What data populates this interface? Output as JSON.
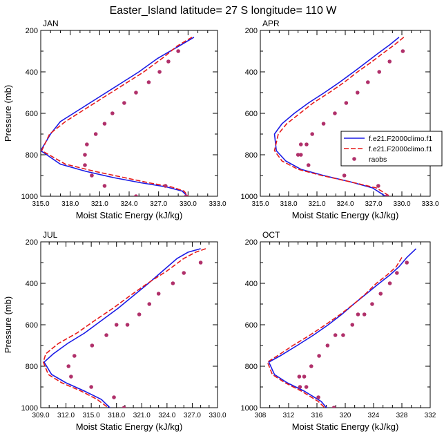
{
  "title": "Easter_Island  latitude= 27 S longitude= 110 W",
  "legend": {
    "placement": "right-middle (upper-right panel)",
    "entries": [
      {
        "label": "f.e21.F2000climo.f1",
        "style": "solid",
        "color": "#1a1ae6"
      },
      {
        "label": "f.e21.F2000climo.f1",
        "style": "dashed",
        "color": "#e61a1a"
      },
      {
        "label": "raobs",
        "style": "marker",
        "color": "#b0306a"
      }
    ]
  },
  "chart_data": [
    {
      "type": "line",
      "panel": "JAN",
      "xlabel": "Moist Static Energy (kJ/kg)",
      "ylabel": "Pressure (mb)",
      "xlim": [
        315.0,
        333.0
      ],
      "ylim": [
        1000,
        200
      ],
      "y_reversed": true,
      "xticks": [
        "315.0",
        "318.0",
        "321.0",
        "324.0",
        "327.0",
        "330.0",
        "333.0"
      ],
      "xtick_values": [
        315,
        318,
        321,
        324,
        327,
        330,
        333
      ],
      "yticks": [
        "200",
        "400",
        "600",
        "800",
        "1000"
      ],
      "ytick_values": [
        200,
        400,
        600,
        800,
        1000
      ],
      "series": [
        {
          "style": "solid",
          "color": "#1a1ae6",
          "x": [
            330.6,
            329.1,
            326.9,
            325.0,
            323.0,
            321.0,
            319.0,
            317.0,
            316.0,
            315.0,
            317.0,
            319.6,
            322.4,
            325.2,
            327.8,
            329.4,
            330.2
          ],
          "y": [
            233,
            275,
            335,
            400,
            460,
            520,
            580,
            640,
            700,
            780,
            845,
            880,
            910,
            935,
            955,
            975,
            1012
          ]
        },
        {
          "style": "dashed",
          "color": "#e61a1a",
          "x": [
            330.4,
            328.9,
            327.5,
            325.5,
            323.5,
            321.5,
            319.5,
            317.5,
            315.9,
            315.1,
            317.5,
            320.5,
            323.5,
            326.0,
            328.3,
            329.6,
            330.2
          ],
          "y": [
            233,
            275,
            330,
            400,
            460,
            520,
            580,
            640,
            700,
            780,
            845,
            880,
            910,
            935,
            955,
            975,
            1012
          ]
        },
        {
          "style": "marker",
          "color": "#b0306a",
          "x": [
            329.0,
            328.0,
            327.1,
            326.0,
            324.7,
            323.5,
            322.3,
            321.5,
            320.6,
            319.7,
            319.5,
            319.5,
            320.2,
            321.5,
            324.7,
            327.7,
            329.8
          ],
          "y": [
            300,
            350,
            400,
            450,
            500,
            550,
            600,
            650,
            700,
            750,
            800,
            850,
            900,
            950,
            1000,
            950,
            1000
          ]
        }
      ]
    },
    {
      "type": "line",
      "panel": "APR",
      "xlabel": "Moist Static Energy (kJ/kg)",
      "ylabel": "",
      "xlim": [
        315.0,
        333.0
      ],
      "ylim": [
        1000,
        200
      ],
      "y_reversed": true,
      "xticks": [
        "315.0",
        "318.0",
        "321.0",
        "324.0",
        "327.0",
        "330.0",
        "333.0"
      ],
      "xtick_values": [
        315,
        318,
        321,
        324,
        327,
        330,
        333
      ],
      "yticks": [
        "200",
        "400",
        "600",
        "800",
        "1000"
      ],
      "ytick_values": [
        200,
        400,
        600,
        800,
        1000
      ],
      "series": [
        {
          "style": "solid",
          "color": "#1a1ae6",
          "x": [
            329.7,
            328.7,
            327.5,
            326.2,
            324.9,
            323.4,
            321.8,
            320.1,
            318.6,
            317.3,
            316.5,
            316.7,
            317.7,
            319.3,
            321.7,
            324.5,
            326.9,
            328.6
          ],
          "y": [
            233,
            270,
            310,
            355,
            400,
            450,
            500,
            550,
            600,
            650,
            700,
            780,
            830,
            870,
            900,
            930,
            960,
            1010
          ]
        },
        {
          "style": "dashed",
          "color": "#e61a1a",
          "x": [
            330.2,
            329.2,
            328.0,
            326.7,
            325.3,
            323.9,
            322.3,
            320.6,
            319.2,
            317.8,
            316.9,
            316.5,
            317.3,
            319.0,
            321.5,
            324.5,
            327.3,
            329.1
          ],
          "y": [
            233,
            270,
            310,
            355,
            400,
            450,
            500,
            550,
            600,
            650,
            700,
            780,
            830,
            870,
            900,
            930,
            960,
            1010
          ]
        },
        {
          "style": "marker",
          "color": "#b0306a",
          "x": [
            330.1,
            328.7,
            327.6,
            326.4,
            325.3,
            324.1,
            322.9,
            321.7,
            320.5,
            319.9,
            319.3,
            319.0,
            319.3,
            320.1,
            323.9,
            327.5,
            328.4
          ],
          "y": [
            300,
            350,
            400,
            450,
            500,
            550,
            600,
            650,
            700,
            750,
            750,
            800,
            800,
            850,
            900,
            950,
            1000
          ]
        }
      ]
    },
    {
      "type": "line",
      "panel": "JUL",
      "xlabel": "Moist Static Energy (kJ/kg)",
      "ylabel": "Pressure (mb)",
      "xlim": [
        309.0,
        330.0
      ],
      "ylim": [
        1000,
        200
      ],
      "y_reversed": true,
      "xticks": [
        "309.0",
        "312.0",
        "315.0",
        "318.0",
        "321.0",
        "324.0",
        "327.0",
        "330.0"
      ],
      "xtick_values": [
        309,
        312,
        315,
        318,
        321,
        324,
        327,
        330
      ],
      "yticks": [
        "200",
        "400",
        "600",
        "800",
        "1000"
      ],
      "ytick_values": [
        200,
        400,
        600,
        800,
        1000
      ],
      "series": [
        {
          "style": "solid",
          "color": "#1a1ae6",
          "x": [
            328.0,
            326.5,
            325.2,
            323.5,
            321.8,
            320.0,
            318.2,
            316.2,
            314.2,
            312.2,
            310.5,
            309.4,
            310.3,
            312.0,
            314.2,
            316.2,
            317.2,
            317.6
          ],
          "y": [
            233,
            250,
            280,
            340,
            400,
            460,
            520,
            580,
            640,
            690,
            740,
            780,
            840,
            880,
            920,
            960,
            1000,
            1012
          ]
        },
        {
          "style": "dashed",
          "color": "#e61a1a",
          "x": [
            328.6,
            327.4,
            326.0,
            324.0,
            321.7,
            319.6,
            317.6,
            315.4,
            313.3,
            311.1,
            309.6,
            309.3,
            309.9,
            311.5,
            313.8,
            315.7,
            317.0,
            317.3
          ],
          "y": [
            233,
            250,
            280,
            340,
            400,
            460,
            520,
            580,
            640,
            690,
            740,
            780,
            840,
            880,
            920,
            960,
            1000,
            1012
          ]
        },
        {
          "style": "marker",
          "color": "#b0306a",
          "x": [
            328.0,
            326.0,
            324.7,
            323.0,
            321.9,
            320.7,
            319.3,
            318.0,
            316.8,
            315.1,
            313.0,
            312.3,
            312.6,
            315.0,
            317.7,
            318.9
          ],
          "y": [
            300,
            350,
            400,
            450,
            500,
            550,
            600,
            600,
            650,
            700,
            750,
            800,
            850,
            900,
            950,
            1000
          ]
        }
      ]
    },
    {
      "type": "line",
      "panel": "OCT",
      "xlabel": "Moist Static Energy (kJ/kg)",
      "ylabel": "",
      "xlim": [
        308,
        332
      ],
      "ylim": [
        1000,
        200
      ],
      "y_reversed": true,
      "xticks": [
        "308",
        "312",
        "316",
        "320",
        "324",
        "328",
        "332"
      ],
      "xtick_values": [
        308,
        312,
        316,
        320,
        324,
        328,
        332
      ],
      "yticks": [
        "200",
        "400",
        "600",
        "800",
        "1000"
      ],
      "ytick_values": [
        200,
        400,
        600,
        800,
        1000
      ],
      "series": [
        {
          "style": "solid",
          "color": "#1a1ae6",
          "x": [
            330.0,
            328.7,
            327.6,
            326.3,
            324.8,
            323.0,
            321.2,
            319.5,
            317.6,
            315.5,
            313.2,
            310.8,
            309.2,
            310.0,
            311.8,
            314.2,
            316.6,
            317.6
          ],
          "y": [
            233,
            275,
            320,
            360,
            400,
            450,
            500,
            550,
            600,
            650,
            700,
            750,
            780,
            840,
            880,
            920,
            970,
            1010
          ]
        },
        {
          "style": "dashed",
          "color": "#e61a1a",
          "x": [
            328.0,
            327.2,
            325.9,
            324.4,
            322.9,
            321.2,
            319.3,
            317.2,
            315.0,
            312.6,
            310.4,
            309.0,
            309.7,
            311.5,
            313.8,
            316.2,
            317.4
          ],
          "y": [
            275,
            320,
            360,
            400,
            450,
            500,
            550,
            600,
            650,
            700,
            750,
            780,
            840,
            880,
            920,
            970,
            1010
          ]
        },
        {
          "style": "marker",
          "color": "#b0306a",
          "x": [
            328.7,
            327.3,
            326.3,
            325.0,
            323.8,
            322.7,
            321.8,
            321.0,
            319.7,
            318.6,
            317.5,
            316.3,
            315.2,
            314.2,
            313.5,
            313.6,
            314.5,
            316.2,
            318.4
          ],
          "y": [
            300,
            350,
            400,
            450,
            500,
            550,
            550,
            600,
            650,
            650,
            700,
            750,
            800,
            850,
            850,
            900,
            900,
            950,
            1000
          ]
        }
      ]
    }
  ]
}
